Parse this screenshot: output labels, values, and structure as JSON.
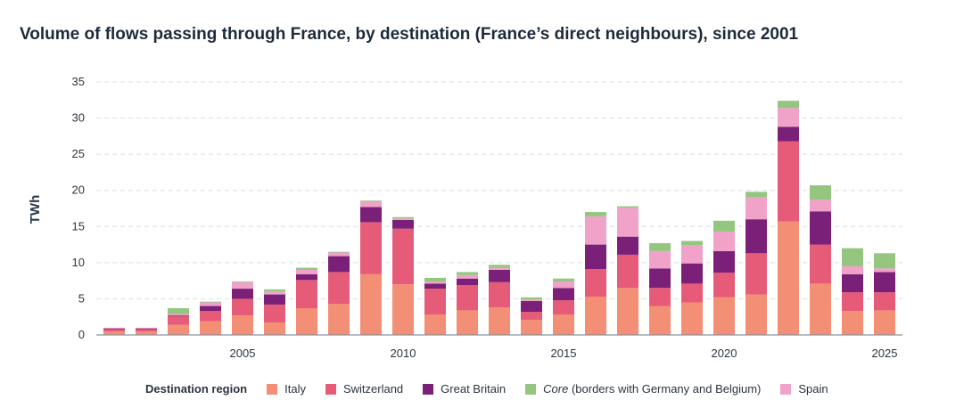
{
  "chart_data": {
    "type": "bar",
    "stacked": true,
    "title": "Volume of flows passing through France, by destination (France’s direct neighbours), since 2001",
    "ylabel": "TWh",
    "xlabel": "",
    "ylim": [
      0,
      35
    ],
    "yticks": [
      0,
      5,
      10,
      15,
      20,
      25,
      30,
      35
    ],
    "xticks": [
      2005,
      2010,
      2015,
      2020,
      2025
    ],
    "grid": true,
    "legend_position": "bottom",
    "legend_title": "Destination region",
    "categories": [
      2001,
      2002,
      2003,
      2004,
      2005,
      2006,
      2007,
      2008,
      2009,
      2010,
      2011,
      2012,
      2013,
      2014,
      2015,
      2016,
      2017,
      2018,
      2019,
      2020,
      2021,
      2022,
      2023,
      2024,
      2025
    ],
    "series": [
      {
        "name": "Italy",
        "color": "#f28f74",
        "values": [
          0.5,
          0.5,
          1.4,
          1.9,
          2.7,
          1.7,
          3.7,
          4.3,
          8.4,
          7.0,
          2.8,
          3.4,
          3.8,
          2.1,
          2.8,
          5.3,
          6.5,
          4.0,
          4.5,
          5.2,
          5.6,
          15.7,
          7.1,
          3.3,
          3.4
        ]
      },
      {
        "name": "Switzerland",
        "color": "#e65b77",
        "values": [
          0.3,
          0.3,
          1.2,
          1.4,
          2.3,
          2.5,
          3.9,
          4.4,
          7.2,
          7.7,
          3.6,
          3.5,
          3.5,
          1.1,
          2.0,
          3.8,
          4.6,
          2.5,
          2.6,
          3.4,
          5.7,
          11.1,
          5.4,
          2.6,
          2.5
        ]
      },
      {
        "name": "Great Britain",
        "color": "#7a2078",
        "values": [
          0.1,
          0.1,
          0.1,
          0.7,
          1.4,
          1.4,
          0.8,
          2.2,
          2.1,
          1.2,
          0.7,
          0.9,
          1.7,
          1.5,
          1.7,
          3.4,
          2.5,
          2.7,
          2.8,
          3.0,
          4.7,
          2.0,
          4.6,
          2.5,
          2.8
        ]
      },
      {
        "name": "Spain",
        "color": "#f0a2c9",
        "values": [
          0.1,
          0.1,
          0.2,
          0.5,
          0.9,
          0.4,
          0.6,
          0.5,
          0.8,
          0.2,
          0.3,
          0.5,
          0.3,
          0.2,
          0.9,
          3.9,
          4.0,
          2.4,
          2.5,
          2.7,
          3.1,
          2.6,
          1.6,
          1.1,
          0.5
        ]
      },
      {
        "name": "Core",
        "name_suffix": " (borders with Germany and Belgium)",
        "color": "#94c680",
        "values": [
          0.0,
          0.0,
          0.8,
          0.1,
          0.1,
          0.3,
          0.3,
          0.1,
          0.1,
          0.2,
          0.5,
          0.4,
          0.4,
          0.3,
          0.4,
          0.6,
          0.2,
          1.1,
          0.6,
          1.5,
          0.7,
          1.0,
          2.0,
          2.5,
          2.1
        ]
      }
    ],
    "legend_order": [
      "Italy",
      "Switzerland",
      "Great Britain",
      "Core",
      "Spain"
    ]
  }
}
